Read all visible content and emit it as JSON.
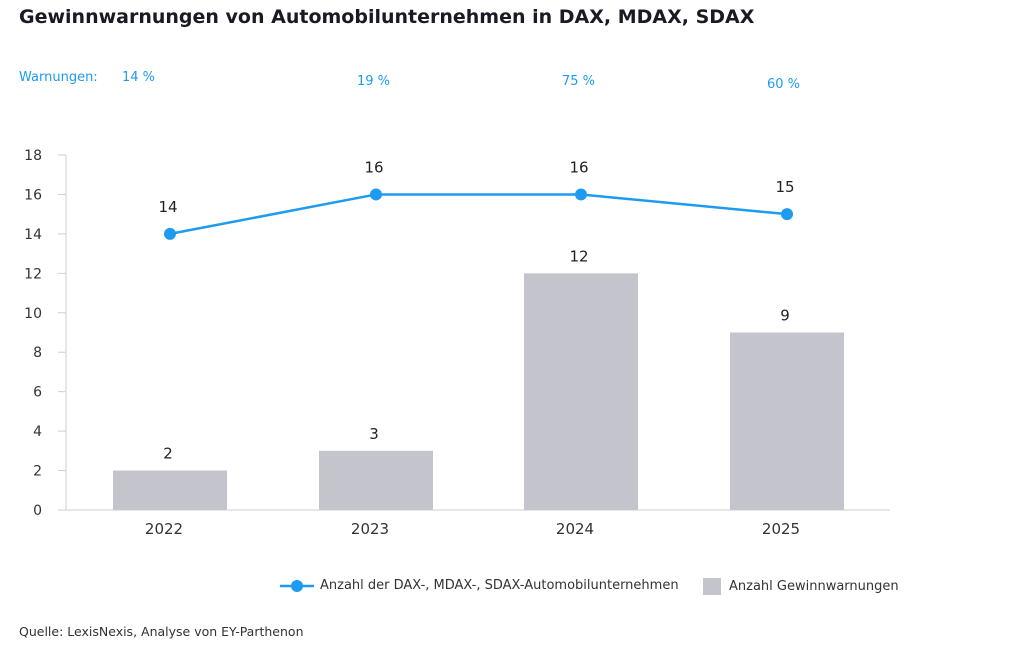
{
  "title": "Gewinnwarnungen von Automobilunternehmen in DAX, MDAX, SDAX",
  "warnings_label": "Warnungen:",
  "warnings_pct": [
    "14 %",
    "19 %",
    "75 %",
    "60 %"
  ],
  "source": "Quelle: LexisNexis, Analyse von EY-Parthenon",
  "colors": {
    "line": "#1e9bf0",
    "bar": "#c4c4cc",
    "axis": "#cfcfd4"
  },
  "chart_data": {
    "type": "bar",
    "title": "Gewinnwarnungen von Automobilunternehmen in DAX, MDAX, SDAX",
    "xlabel": "",
    "ylabel": "",
    "categories": [
      "2022",
      "2023",
      "2024",
      "2025"
    ],
    "ylim": [
      0,
      18
    ],
    "yticks": [
      0,
      2,
      4,
      6,
      8,
      10,
      12,
      14,
      16,
      18
    ],
    "grid": false,
    "legend_position": "bottom-right",
    "series": [
      {
        "name": "Anzahl der DAX-, MDAX-, SDAX-Automobilunternehmen",
        "type": "line",
        "values": [
          14,
          16,
          16,
          15
        ]
      },
      {
        "name": "Anzahl Gewinnwarnungen",
        "type": "bar",
        "values": [
          2,
          3,
          12,
          9
        ]
      }
    ],
    "annotations": [
      "Warnungen: 14 %",
      "19 %",
      "75 %",
      "60 %"
    ]
  }
}
